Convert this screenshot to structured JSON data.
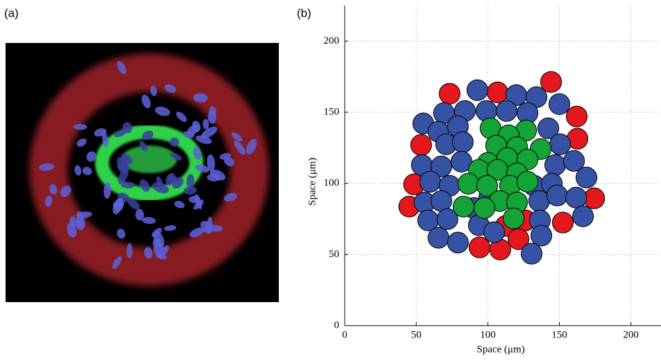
{
  "panel_labels": [
    "(a)",
    "(b)"
  ],
  "chart_data": {
    "type": "scatter",
    "xlabel": "Space (μm)",
    "ylabel": "Space (μm)",
    "xlim": [
      0,
      221
    ],
    "ylim": [
      0,
      225
    ],
    "xticks": [
      0,
      50,
      100,
      150,
      200
    ],
    "yticks": [
      0,
      50,
      100,
      150,
      200
    ],
    "grid": true,
    "marker_radius": 7.3,
    "series": [
      {
        "color": "#e3171d",
        "x": [
          73.3,
          106.8,
          144.2,
          162.1,
          162.6,
          53.4,
          48.5,
          45.1,
          174.3,
          152.4,
          126.2,
          112.6,
          121.4,
          94.2,
          108.7
        ],
        "y": [
          163.0,
          164.0,
          171.3,
          147.0,
          131.4,
          127.0,
          99.3,
          83.7,
          89.5,
          72.5,
          74.0,
          70.1,
          60.8,
          55.0,
          53.5
        ]
      },
      {
        "color": "#3652a5",
        "x": [
          92.7,
          119.9,
          134.0,
          69.4,
          84.0,
          99.0,
          113.1,
          127.7,
          150.0,
          54.9,
          65.5,
          79.1,
          142.2,
          70.9,
          82.5,
          150.5,
          53.9,
          67.5,
          81.6,
          147.1,
          160.2,
          59.7,
          73.3,
          132.5,
          144.7,
          168.9,
          55.8,
          67.5,
          90.3,
          101.0,
          135.9,
          148.5,
          161.7,
          58.3,
          71.8,
          93.7,
          136.4,
          166.5,
          65.5,
          79.1,
          104.4,
          137.4,
          130.6
        ],
        "y": [
          165.5,
          162.0,
          160.6,
          149.4,
          150.9,
          150.9,
          150.9,
          149.4,
          155.7,
          142.1,
          136.3,
          140.1,
          138.7,
          127.5,
          129.0,
          127.5,
          112.9,
          111.9,
          115.3,
          112.9,
          115.8,
          101.2,
          98.3,
          98.3,
          99.8,
          104.1,
          86.6,
          87.6,
          82.7,
          90.0,
          87.6,
          91.5,
          90.0,
          74.0,
          74.9,
          70.6,
          74.0,
          76.9,
          61.8,
          58.4,
          65.7,
          63.3,
          50.6
        ]
      },
      {
        "color": "#14a336",
        "x": [
          101.9,
          126.7,
          114.6,
          105.8,
          120.4,
          136.9,
          100.0,
          113.6,
          127.7,
          93.7,
          106.8,
          120.4,
          86.4,
          99.5,
          115.5,
          127.7,
          108.3,
          120.4,
          83.0,
          97.6,
          118.0
        ],
        "y": [
          138.7,
          137.2,
          133.8,
          126.5,
          125.5,
          124.1,
          114.4,
          117.8,
          116.8,
          109.5,
          109.5,
          107.1,
          99.8,
          98.3,
          98.3,
          101.2,
          87.6,
          86.6,
          83.7,
          82.7,
          75.4
        ]
      }
    ]
  }
}
